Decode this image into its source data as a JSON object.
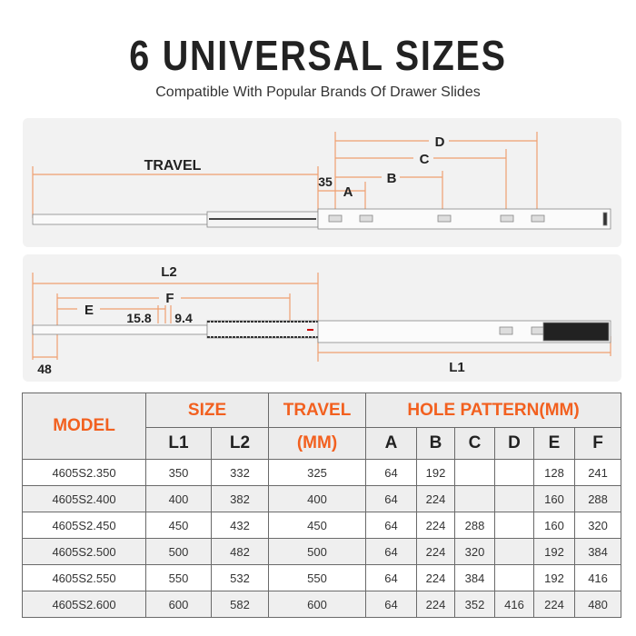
{
  "header": {
    "title": "6 UNIVERSAL SIZES",
    "subtitle": "Compatible With Popular Brands Of Drawer Slides"
  },
  "colors": {
    "accent": "#f2601f",
    "dimension_line": "#f0a070",
    "panel_bg": "#f2f2f2"
  },
  "diagram_top": {
    "travel": "TRAVEL",
    "offset": "35",
    "a": "A",
    "b": "B",
    "c": "C",
    "d": "D"
  },
  "diagram_bottom": {
    "l2": "L2",
    "f": "F",
    "e": "E",
    "dim1": "15.8",
    "dim2": "9.4",
    "dim3": "48",
    "l1": "L1"
  },
  "table": {
    "headers": {
      "model": "MODEL",
      "size": "SIZE",
      "travel": "TRAVEL",
      "travel_unit": "(MM)",
      "hole_pattern": "HOLE PATTERN(MM)",
      "l1": "L1",
      "l2": "L2",
      "a": "A",
      "b": "B",
      "c": "C",
      "d": "D",
      "e": "E",
      "f": "F"
    },
    "rows": [
      {
        "model": "4605S2.350",
        "l1": "350",
        "l2": "332",
        "travel": "325",
        "a": "64",
        "b": "192",
        "c": "",
        "d": "",
        "e": "128",
        "f": "241"
      },
      {
        "model": "4605S2.400",
        "l1": "400",
        "l2": "382",
        "travel": "400",
        "a": "64",
        "b": "224",
        "c": "",
        "d": "",
        "e": "160",
        "f": "288"
      },
      {
        "model": "4605S2.450",
        "l1": "450",
        "l2": "432",
        "travel": "450",
        "a": "64",
        "b": "224",
        "c": "288",
        "d": "",
        "e": "160",
        "f": "320"
      },
      {
        "model": "4605S2.500",
        "l1": "500",
        "l2": "482",
        "travel": "500",
        "a": "64",
        "b": "224",
        "c": "320",
        "d": "",
        "e": "192",
        "f": "384"
      },
      {
        "model": "4605S2.550",
        "l1": "550",
        "l2": "532",
        "travel": "550",
        "a": "64",
        "b": "224",
        "c": "384",
        "d": "",
        "e": "192",
        "f": "416"
      },
      {
        "model": "4605S2.600",
        "l1": "600",
        "l2": "582",
        "travel": "600",
        "a": "64",
        "b": "224",
        "c": "352",
        "d": "416",
        "e": "224",
        "f": "480"
      }
    ]
  }
}
